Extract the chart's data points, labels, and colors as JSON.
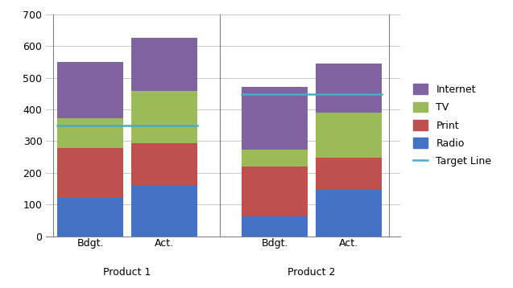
{
  "groups": [
    "Product 1",
    "Product 2"
  ],
  "bars": [
    "Bdgt.",
    "Act."
  ],
  "radio": [
    120,
    162,
    63,
    148
  ],
  "print": [
    158,
    132,
    158,
    100
  ],
  "tv": [
    95,
    165,
    52,
    143
  ],
  "internet": [
    178,
    168,
    198,
    153
  ],
  "target_lines": [
    {
      "y": 350
    },
    {
      "y": 448
    }
  ],
  "colors": {
    "Radio": "#4472C4",
    "Print": "#C0504D",
    "TV": "#9BBB59",
    "Internet": "#8064A2"
  },
  "target_color": "#4BACC6",
  "ylim": [
    0,
    700
  ],
  "yticks": [
    0,
    100,
    200,
    300,
    400,
    500,
    600,
    700
  ],
  "background_color": "#FFFFFF",
  "grid_color": "#C8C8C8",
  "border_color": "#808080"
}
